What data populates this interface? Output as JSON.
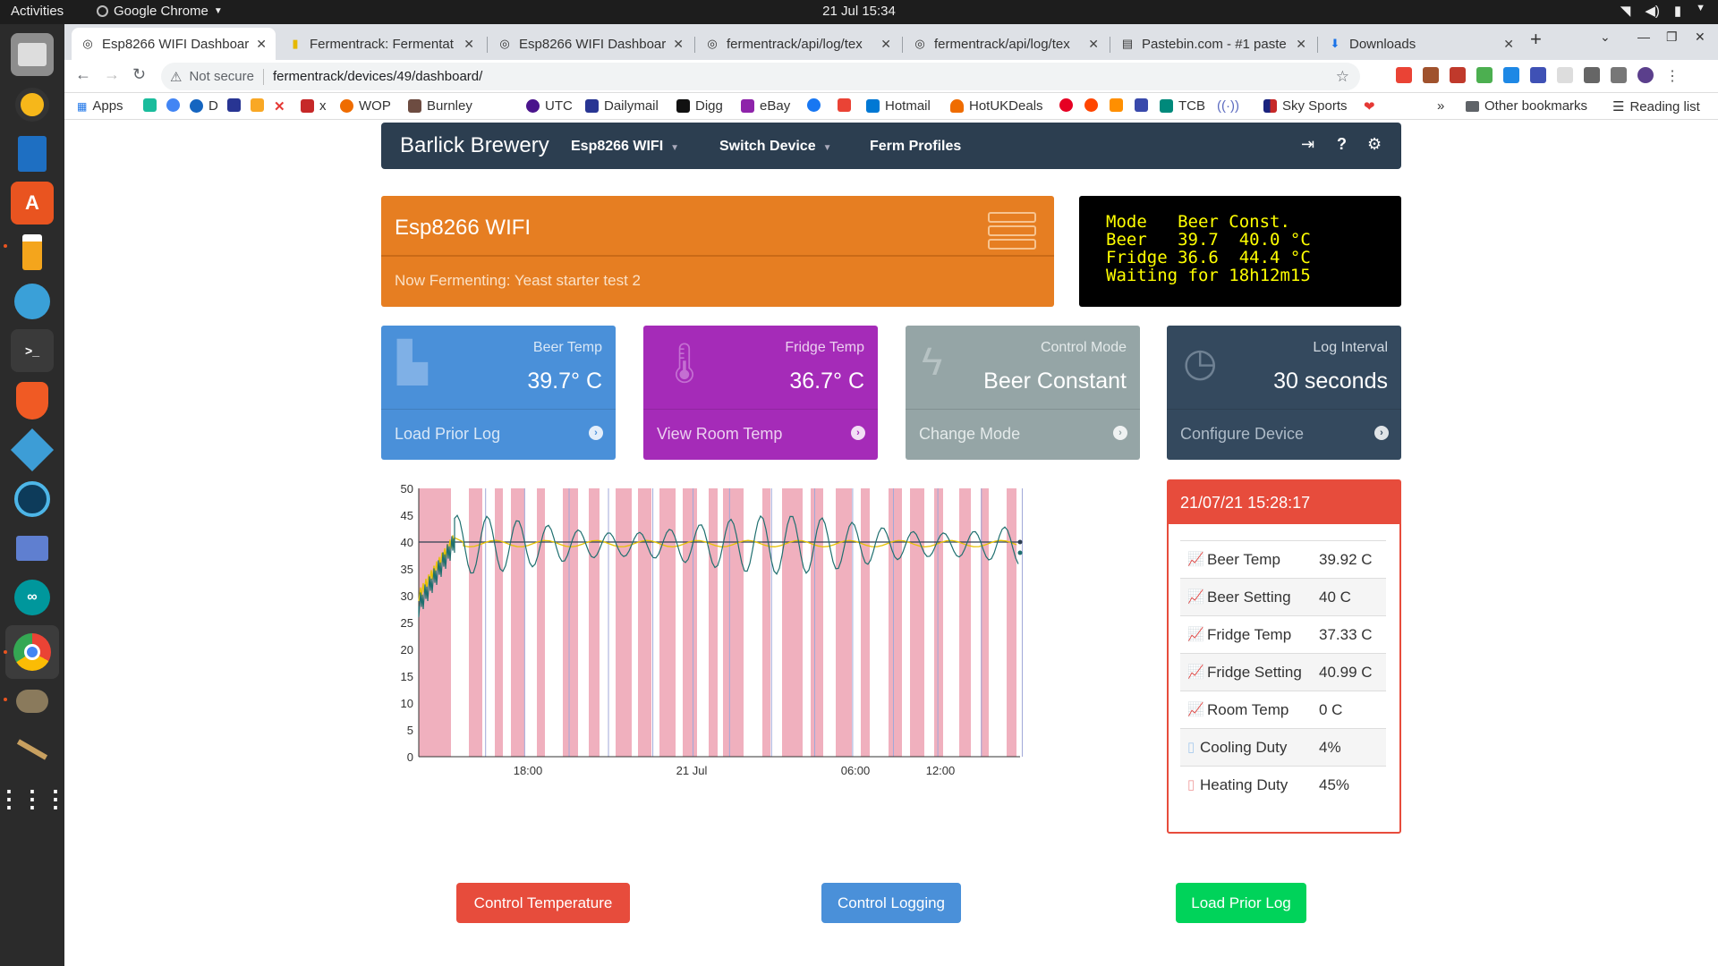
{
  "topbar": {
    "activities": "Activities",
    "app": "Google Chrome",
    "clock": "21 Jul  15:34"
  },
  "dock": {
    "items": [
      "files-icon",
      "rhythmbox-icon",
      "writer-icon",
      "software-icon",
      "beer-icon",
      "settings-icon",
      "terminal-icon",
      "brave-icon",
      "kodi-icon",
      "remote-icon",
      "network-icon",
      "arduino-icon",
      "chrome-icon",
      "gimp-icon",
      "pen-icon",
      "apps-grid-icon"
    ]
  },
  "tabs": [
    {
      "title": "Esp8266 WIFI Dashboard",
      "active": true
    },
    {
      "title": "Fermentrack: Fermentat",
      "active": false
    },
    {
      "title": "Esp8266 WIFI Dashboard",
      "active": false
    },
    {
      "title": "fermentrack/api/log/tex",
      "active": false
    },
    {
      "title": "fermentrack/api/log/tex",
      "active": false
    },
    {
      "title": "Pastebin.com - #1 paste",
      "active": false
    },
    {
      "title": "Downloads",
      "active": false
    }
  ],
  "omnibox": {
    "security": "Not secure",
    "url": "fermentrack/devices/49/dashboard/"
  },
  "bookmarks": {
    "apps": "Apps",
    "items": [
      "D",
      "x",
      "WOP",
      "Burnley",
      "UTC",
      "Dailymail",
      "Digg",
      "eBay",
      "Hotmail",
      "HotUKDeals",
      "TCB",
      "Sky Sports"
    ],
    "other": "Other bookmarks",
    "reading": "Reading list"
  },
  "navbar": {
    "brand": "Barlick Brewery",
    "device_menu": "Esp8266 WIFI",
    "switch_menu": "Switch Device",
    "profiles": "Ferm Profiles"
  },
  "device_panel": {
    "name": "Esp8266 WIFI",
    "fermenting": "Now Fermenting: Yeast starter test 2"
  },
  "lcd": {
    "lines": [
      "Mode   Beer Const.",
      "Beer   39.7  40.0 °C",
      "Fridge 36.6  44.4 °C",
      "Waiting for 18h12m15"
    ]
  },
  "cards": [
    {
      "label": "Beer Temp",
      "value": "39.7° C",
      "footer": "Load Prior Log",
      "color": "#4a90d9"
    },
    {
      "label": "Fridge Temp",
      "value": "36.7° C",
      "footer": "View Room Temp",
      "color": "#a52bb8"
    },
    {
      "label": "Control Mode",
      "value": "Beer Constant",
      "footer": "Change Mode",
      "color": "#95a5a6"
    },
    {
      "label": "Log Interval",
      "value": "30 seconds",
      "footer": "Configure Device",
      "color": "#34495e"
    }
  ],
  "readings": {
    "timestamp": "21/07/21 15:28:17",
    "rows": [
      {
        "name": "Beer Temp",
        "value": "39.92 C",
        "icon": "chart-line-icon",
        "color": "#e6b800"
      },
      {
        "name": "Beer Setting",
        "value": "40 C",
        "icon": "chart-line-icon",
        "color": "#2c3e50"
      },
      {
        "name": "Fridge Temp",
        "value": "37.33 C",
        "icon": "chart-line-icon",
        "color": "#2c3e50"
      },
      {
        "name": "Fridge Setting",
        "value": "40.99 C",
        "icon": "chart-line-icon",
        "color": "#16a085"
      },
      {
        "name": "Room Temp",
        "value": "0 C",
        "icon": "chart-line-icon",
        "color": "#8e44ad"
      },
      {
        "name": "Cooling Duty",
        "value": "4%",
        "icon": "thermometer-cold-icon",
        "color": "#aaccee"
      },
      {
        "name": "Heating Duty",
        "value": "45%",
        "icon": "thermometer-hot-icon",
        "color": "#f0a0a0"
      }
    ]
  },
  "buttons": {
    "control_temp": "Control Temperature",
    "control_logging": "Control Logging",
    "load_prior": "Load Prior Log"
  },
  "chart_data": {
    "type": "line",
    "ylim": [
      0,
      50
    ],
    "y_ticks": [
      0,
      5,
      10,
      15,
      20,
      25,
      30,
      35,
      40,
      45,
      50
    ],
    "x_ticks": [
      "18:00",
      "21 Jul",
      "06:00",
      "12:00"
    ],
    "beer_setting": 40,
    "fridge_temp_range": [
      34,
      45
    ],
    "beer_temp_approx": 39.7,
    "heating_duty": "45%",
    "cooling_duty": "4%"
  }
}
